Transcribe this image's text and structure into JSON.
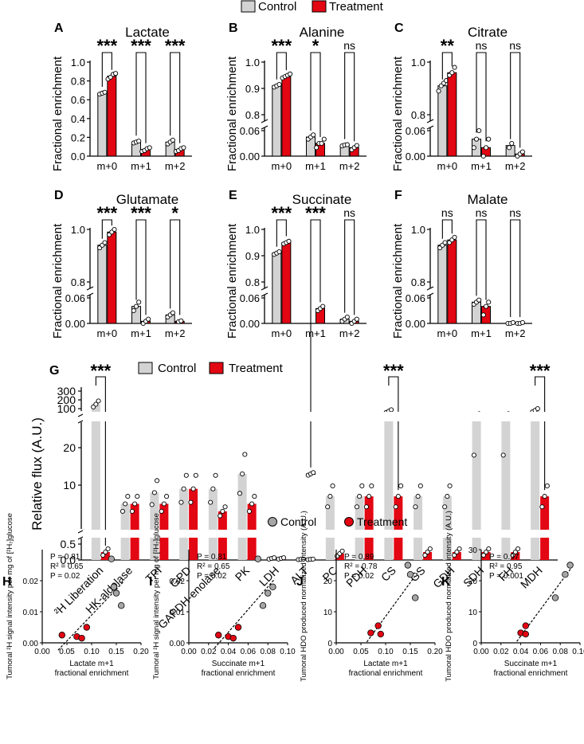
{
  "legends": {
    "top": {
      "control": "Control",
      "treatment": "Treatment"
    },
    "flux": {
      "control": "Control",
      "treatment": "Treatment"
    },
    "scatter": {
      "control": "Control",
      "treatment": "Treatment"
    }
  },
  "colors": {
    "control": "#d3d3d3",
    "treatment": "#e30613",
    "control_dot": "#a6a6a6",
    "treatment_dot": "#e30613"
  },
  "chart_data": [
    {
      "panel": "A",
      "type": "bar",
      "title": "Lactate",
      "ylabel": "Fractional enrichment",
      "categories": [
        "m+0",
        "m+1",
        "m+2"
      ],
      "series": [
        {
          "name": "Control",
          "values": [
            0.67,
            0.15,
            0.15
          ]
        },
        {
          "name": "Treatment",
          "values": [
            0.85,
            0.07,
            0.07
          ]
        }
      ],
      "points": {
        "Control": [
          [
            0.66,
            0.67,
            0.68
          ],
          [
            0.14,
            0.15,
            0.16
          ],
          [
            0.13,
            0.15,
            0.17
          ]
        ],
        "Treatment": [
          [
            0.82,
            0.84,
            0.87,
            0.88
          ],
          [
            0.05,
            0.06,
            0.08,
            0.09
          ],
          [
            0.05,
            0.06,
            0.08,
            0.09
          ]
        ]
      },
      "significance": [
        "***",
        "***",
        "***"
      ],
      "yticks": [
        "0.0",
        "0.2",
        "0.4",
        "0.6",
        "0.8",
        "1.0"
      ],
      "ylim": [
        0,
        1.0
      ]
    },
    {
      "panel": "B",
      "type": "bar",
      "title": "Alanine",
      "ylabel": "Fractional enrichment",
      "categories": [
        "m+0",
        "m+1",
        "m+2"
      ],
      "series": [
        {
          "name": "Control",
          "values": [
            0.91,
            0.045,
            0.025
          ]
        },
        {
          "name": "Treatment",
          "values": [
            0.945,
            0.03,
            0.02
          ]
        }
      ],
      "points": {
        "Control": [
          [
            0.905,
            0.91,
            0.915
          ],
          [
            0.04,
            0.045,
            0.05
          ],
          [
            0.024,
            0.026,
            0.027
          ]
        ],
        "Treatment": [
          [
            0.94,
            0.945,
            0.95,
            0.955
          ],
          [
            0.02,
            0.03,
            0.03,
            0.04
          ],
          [
            0.015,
            0.02,
            0.025
          ]
        ]
      },
      "significance": [
        "***",
        "*",
        "ns"
      ],
      "yticks_low": [
        "0.00",
        "0.06"
      ],
      "yticks_high": [
        "0.8",
        "0.9",
        "1.0"
      ],
      "broken_axis": true
    },
    {
      "panel": "C",
      "type": "bar",
      "title": "Citrate",
      "ylabel": "Fractional enrichment",
      "categories": [
        "m+0",
        "m+1",
        "m+2"
      ],
      "series": [
        {
          "name": "Control",
          "values": [
            0.91,
            0.04,
            0.025
          ]
        },
        {
          "name": "Treatment",
          "values": [
            0.96,
            0.02,
            0.005
          ]
        }
      ],
      "points": {
        "Control": [
          [
            0.89,
            0.91,
            0.92,
            0.93
          ],
          [
            0.02,
            0.04,
            0.06
          ],
          [
            0.02,
            0.03
          ]
        ],
        "Treatment": [
          [
            0.95,
            0.96,
            0.98
          ],
          [
            0.0,
            0.02,
            0.04
          ],
          [
            0.0,
            0.005,
            0.01
          ]
        ]
      },
      "significance": [
        "**",
        "ns",
        "ns"
      ],
      "yticks_low": [
        "0.00",
        "0.06"
      ],
      "yticks_high": [
        "0.8",
        "1.0"
      ],
      "broken_axis": true
    },
    {
      "panel": "D",
      "type": "bar",
      "title": "Glutamate",
      "ylabel": "Fractional enrichment",
      "categories": [
        "m+0",
        "m+1",
        "m+2"
      ],
      "series": [
        {
          "name": "Control",
          "values": [
            0.94,
            0.04,
            0.02
          ]
        },
        {
          "name": "Treatment",
          "values": [
            0.99,
            0.005,
            0.005
          ]
        }
      ],
      "points": {
        "Control": [
          [
            0.93,
            0.94,
            0.95
          ],
          [
            0.03,
            0.04,
            0.05
          ],
          [
            0.015,
            0.02,
            0.025
          ]
        ],
        "Treatment": [
          [
            0.98,
            0.99,
            1.0
          ],
          [
            0.0,
            0.005,
            0.01
          ],
          [
            0.004,
            0.006
          ]
        ]
      },
      "significance": [
        "***",
        "***",
        "*"
      ],
      "yticks_low": [
        "0.00",
        "0.06"
      ],
      "yticks_high": [
        "0.8",
        "1.0"
      ],
      "broken_axis": true
    },
    {
      "panel": "E",
      "type": "bar",
      "title": "Succinate",
      "ylabel": "Fractional enrichment",
      "categories": [
        "m+0",
        "m+1",
        "m+2"
      ],
      "series": [
        {
          "name": "Control",
          "values": [
            0.91,
            0.07,
            0.01
          ]
        },
        {
          "name": "Treatment",
          "values": [
            0.95,
            0.035,
            0.005
          ]
        }
      ],
      "points": {
        "Control": [
          [
            0.905,
            0.91,
            0.915
          ],
          [
            0.065,
            0.07,
            0.075
          ],
          [
            0.005,
            0.01,
            0.015
          ]
        ],
        "Treatment": [
          [
            0.945,
            0.95,
            0.955
          ],
          [
            0.03,
            0.035,
            0.04
          ],
          [
            0.0,
            0.005,
            0.01
          ]
        ]
      },
      "significance": [
        "***",
        "***",
        "ns"
      ],
      "yticks_low": [
        "0.00",
        "0.06"
      ],
      "yticks_high": [
        "0.8",
        "0.9",
        "1.0"
      ],
      "broken_axis": true
    },
    {
      "panel": "F",
      "type": "bar",
      "title": "Malate",
      "ylabel": "Fractional enrichment",
      "categories": [
        "m+0",
        "m+1",
        "m+2"
      ],
      "series": [
        {
          "name": "Control",
          "values": [
            0.94,
            0.05,
            0.0
          ]
        },
        {
          "name": "Treatment",
          "values": [
            0.96,
            0.04,
            0.0
          ]
        }
      ],
      "points": {
        "Control": [
          [
            0.93,
            0.94,
            0.95
          ],
          [
            0.045,
            0.05,
            0.055
          ],
          [
            0.0,
            0.0,
            0.002
          ]
        ],
        "Treatment": [
          [
            0.95,
            0.96,
            0.97
          ],
          [
            0.02,
            0.04,
            0.05
          ],
          [
            0.0,
            0.0,
            0.002
          ]
        ]
      },
      "significance": [
        "ns",
        "ns",
        "ns"
      ],
      "yticks_low": [
        "0.00",
        "0.06"
      ],
      "yticks_high": [
        "0.8",
        "1.0"
      ],
      "broken_axis": true
    },
    {
      "panel": "G",
      "type": "bar",
      "ylabel": "Relative flux (A.U.)",
      "categories": [
        "²H Liberation",
        "HK-aldolase",
        "TPI",
        "GPD",
        "GAPDH-enolase",
        "PK",
        "LDH",
        "ALT",
        "PC",
        "PDH",
        "CS",
        "GS",
        "GDH",
        "SDH",
        "FH",
        "MDH"
      ],
      "series": [
        {
          "name": "Control",
          "values": [
            150,
            5,
            8,
            9,
            9,
            13,
            0.05,
            0.02,
            7,
            7,
            70,
            7,
            7,
            30,
            30,
            80
          ]
        },
        {
          "name": "Treatment",
          "values": [
            0.25,
            5,
            5,
            9,
            3,
            5,
            0.05,
            0.02,
            0.2,
            7,
            7,
            0.25,
            0.25,
            0.25,
            0.25,
            7
          ]
        }
      ],
      "significance": {
        "²H Liberation": "***",
        "CS": "***",
        "MDH": "***"
      },
      "yticks": [
        "0.0",
        "0.5",
        "10",
        "20",
        "100",
        "200",
        "300"
      ]
    },
    {
      "panel": "H",
      "type": "scatter",
      "xlabel": "Lactate m+1\nfractional enrichment",
      "ylabel": "Tumoral ²H signal intensity per mg of [²H₇]glucose",
      "stats": [
        "P = 0.81",
        "R² = 0.65",
        "P = 0.02"
      ],
      "control": [
        [
          0.14,
          0.027
        ],
        [
          0.145,
          0.018
        ],
        [
          0.15,
          0.016
        ],
        [
          0.16,
          0.012
        ]
      ],
      "treatment": [
        [
          0.04,
          0.0025
        ],
        [
          0.07,
          0.002
        ],
        [
          0.08,
          0.0015
        ],
        [
          0.09,
          0.005
        ]
      ],
      "xlim": [
        0,
        0.2
      ],
      "ylim": [
        0,
        0.03
      ],
      "xticks": [
        "0.00",
        "0.05",
        "0.10",
        "0.15",
        "0.20"
      ],
      "yticks": [
        "0.00",
        "0.01",
        "0.02"
      ]
    },
    {
      "panel": "I",
      "type": "scatter",
      "xlabel": "Succinate m+1\nfractional enrichment",
      "ylabel": "Tumoral ²H signal intensity per mg of [²H₇]glucose",
      "stats": [
        "P = 0.81",
        "R² = 0.65",
        "P = 0.02"
      ],
      "control": [
        [
          0.07,
          0.027
        ],
        [
          0.075,
          0.012
        ],
        [
          0.08,
          0.016
        ],
        [
          0.085,
          0.018
        ]
      ],
      "treatment": [
        [
          0.03,
          0.0025
        ],
        [
          0.04,
          0.002
        ],
        [
          0.045,
          0.0015
        ],
        [
          0.05,
          0.005
        ]
      ],
      "xlim": [
        0,
        0.1
      ],
      "ylim": [
        0,
        0.03
      ],
      "xticks": [
        "0.00",
        "0.02",
        "0.04",
        "0.06",
        "0.08",
        "0.10"
      ],
      "yticks": [
        "0.00",
        "0.01",
        "0.02"
      ]
    },
    {
      "panel": "J",
      "type": "scatter",
      "xlabel": "Lactate m+1\nfractional enrichment",
      "ylabel": "Tumoral HDO produced normalized intensity (A.U.)",
      "stats": [
        "P = 0.89",
        "R² = 0.78",
        "P = 0.02"
      ],
      "control": [
        [
          0.145,
          25
        ],
        [
          0.15,
          22
        ],
        [
          0.16,
          14.5
        ]
      ],
      "treatment": [
        [
          0.07,
          3.2
        ],
        [
          0.085,
          5.5
        ],
        [
          0.09,
          2.8
        ]
      ],
      "xlim": [
        0,
        0.2
      ],
      "ylim": [
        0,
        30
      ],
      "xticks": [
        "0.00",
        "0.05",
        "0.10",
        "0.15",
        "0.20"
      ],
      "yticks": [
        "0",
        "10",
        "20"
      ]
    },
    {
      "panel": "K",
      "type": "scatter",
      "xlabel": "Succinate m+1\nfractional enrichment",
      "ylabel": "Tumoral HDO produced normalized intensity (A.U.)",
      "stats": [
        "P = 0.97",
        "R² = 0.95",
        "P = 0.001"
      ],
      "control": [
        [
          0.075,
          14.5
        ],
        [
          0.085,
          22
        ],
        [
          0.09,
          25
        ]
      ],
      "treatment": [
        [
          0.04,
          3.2
        ],
        [
          0.045,
          5.5
        ],
        [
          0.045,
          2.8
        ]
      ],
      "xlim": [
        0,
        0.1
      ],
      "ylim": [
        0,
        30
      ],
      "xticks": [
        "0.00",
        "0.02",
        "0.04",
        "0.06",
        "0.08",
        "0.10"
      ],
      "yticks": [
        "0",
        "10",
        "20",
        "30"
      ]
    }
  ]
}
